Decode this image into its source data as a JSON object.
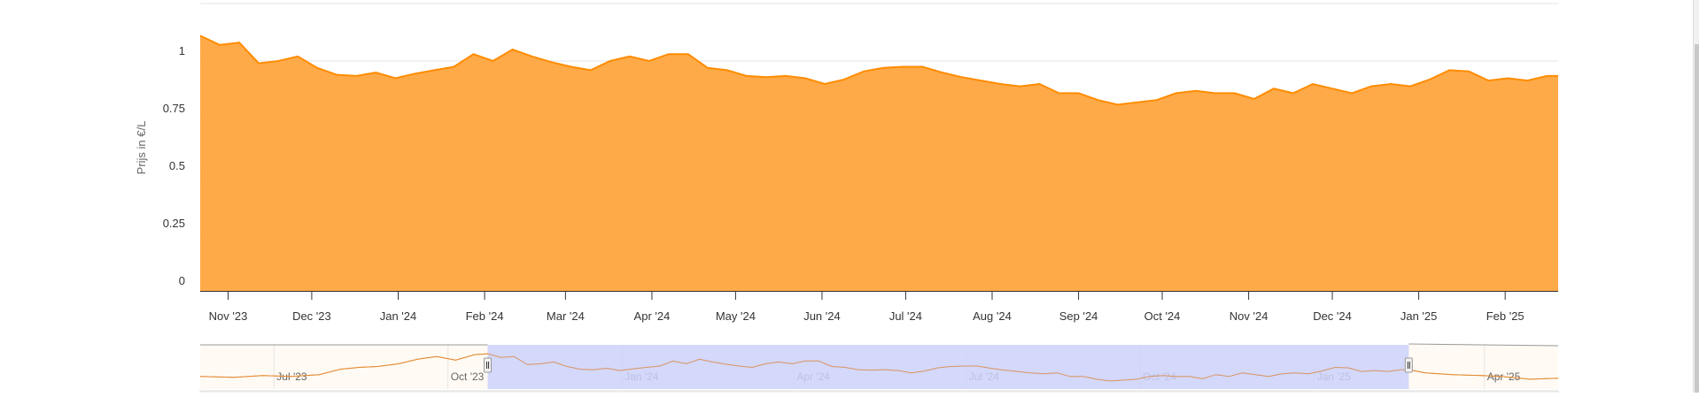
{
  "chart_data": {
    "type": "area",
    "ylabel": "Prijs in €/L",
    "xlabel": "",
    "ylim": [
      0,
      1.25
    ],
    "yticks": [
      0,
      0.25,
      0.5,
      0.75,
      1
    ],
    "ytick_labels": [
      "0",
      "0.25",
      "0.5",
      "0.75",
      "1"
    ],
    "xticks": [
      "2023-11-01",
      "2023-12-01",
      "2024-01-01",
      "2024-02-01",
      "2024-03-01",
      "2024-04-01",
      "2024-05-01",
      "2024-06-01",
      "2024-07-01",
      "2024-08-01",
      "2024-09-01",
      "2024-10-01",
      "2024-11-01",
      "2024-12-01",
      "2025-01-01",
      "2025-02-01"
    ],
    "xtick_labels": [
      "Nov '23",
      "Dec '23",
      "Jan '24",
      "Feb '24",
      "Mar '24",
      "Apr '24",
      "May '24",
      "Jun '24",
      "Jul '24",
      "Aug '24",
      "Sep '24",
      "Oct '24",
      "Nov '24",
      "Dec '24",
      "Jan '25",
      "Feb '25"
    ],
    "grid": true,
    "legend": "none",
    "colors": {
      "fill": "#ffa53f",
      "line": "#ff8c00",
      "navigator_mask": "#ccd1fa",
      "navigator_bg": "#fffaf3"
    },
    "series": [
      {
        "x": [
          "2023-10-22",
          "2023-10-29",
          "2023-11-05",
          "2023-11-12",
          "2023-11-19",
          "2023-11-26",
          "2023-12-03",
          "2023-12-10",
          "2023-12-17",
          "2023-12-24",
          "2023-12-31",
          "2024-01-07",
          "2024-01-14",
          "2024-01-21",
          "2024-01-28",
          "2024-02-04",
          "2024-02-11",
          "2024-02-18",
          "2024-02-25",
          "2024-03-03",
          "2024-03-10",
          "2024-03-17",
          "2024-03-24",
          "2024-03-31",
          "2024-04-07",
          "2024-04-14",
          "2024-04-21",
          "2024-04-28",
          "2024-05-05",
          "2024-05-12",
          "2024-05-19",
          "2024-05-26",
          "2024-06-02",
          "2024-06-09",
          "2024-06-16",
          "2024-06-23",
          "2024-06-30",
          "2024-07-07",
          "2024-07-14",
          "2024-07-21",
          "2024-07-28",
          "2024-08-04",
          "2024-08-11",
          "2024-08-18",
          "2024-08-25",
          "2024-09-01",
          "2024-09-08",
          "2024-09-15",
          "2024-09-22",
          "2024-09-29",
          "2024-10-06",
          "2024-10-13",
          "2024-10-20",
          "2024-10-27",
          "2024-11-03",
          "2024-11-10",
          "2024-11-17",
          "2024-11-24",
          "2024-12-01",
          "2024-12-08",
          "2024-12-15",
          "2024-12-22",
          "2024-12-29",
          "2025-01-05",
          "2025-01-12",
          "2025-01-19",
          "2025-01-26",
          "2025-02-02",
          "2025-02-09",
          "2025-02-16",
          "2025-02-20"
        ],
        "y": [
          1.11,
          1.07,
          1.08,
          0.99,
          1.0,
          1.02,
          0.97,
          0.94,
          0.935,
          0.95,
          0.925,
          0.945,
          0.96,
          0.975,
          1.03,
          1.0,
          1.05,
          1.02,
          0.995,
          0.975,
          0.96,
          1.0,
          1.02,
          1.0,
          1.03,
          1.03,
          0.97,
          0.96,
          0.935,
          0.93,
          0.935,
          0.925,
          0.9,
          0.92,
          0.955,
          0.97,
          0.975,
          0.975,
          0.95,
          0.93,
          0.915,
          0.9,
          0.89,
          0.9,
          0.86,
          0.86,
          0.83,
          0.81,
          0.82,
          0.83,
          0.86,
          0.87,
          0.86,
          0.86,
          0.835,
          0.88,
          0.86,
          0.9,
          0.88,
          0.86,
          0.89,
          0.9,
          0.89,
          0.92,
          0.96,
          0.955,
          0.915,
          0.925,
          0.915,
          0.935,
          0.935
        ]
      }
    ],
    "navigator": {
      "xtick_labels": [
        "Jul '23",
        "Oct '23",
        "Jan '24",
        "Apr '24",
        "Jul '24",
        "Oct '24",
        "Jan '25",
        "Apr '25"
      ],
      "xticks": [
        "2023-07-01",
        "2023-10-01",
        "2024-01-01",
        "2024-04-01",
        "2024-07-01",
        "2024-10-01",
        "2025-01-01",
        "2025-04-01"
      ],
      "before": {
        "x": [
          "2023-05-23",
          "2023-06-10",
          "2023-06-25",
          "2023-07-10",
          "2023-07-25",
          "2023-08-05",
          "2023-08-15",
          "2023-08-25",
          "2023-09-05",
          "2023-09-15",
          "2023-09-25",
          "2023-10-05",
          "2023-10-15"
        ],
        "y": [
          0.86,
          0.85,
          0.87,
          0.86,
          0.88,
          0.94,
          0.96,
          0.97,
          1.0,
          1.05,
          1.08,
          1.04,
          1.1
        ]
      },
      "after": {
        "x": [
          "2025-03-01",
          "2025-03-15",
          "2025-03-31",
          "2025-04-10",
          "2025-04-25",
          "2025-05-10"
        ],
        "y": [
          0.9,
          0.88,
          0.87,
          0.86,
          0.83,
          0.84
        ]
      }
    }
  }
}
